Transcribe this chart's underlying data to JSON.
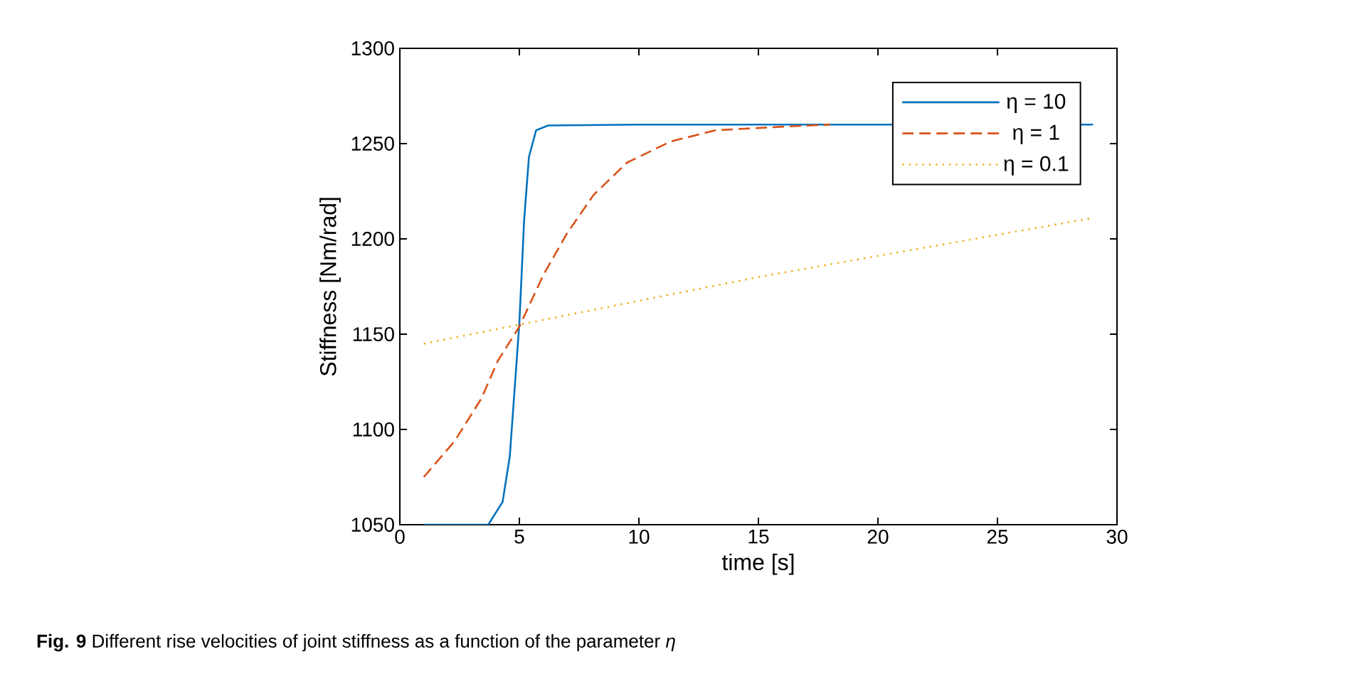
{
  "chart_data": {
    "type": "line",
    "xlabel": "time [s]",
    "ylabel": "Stiffness [Nm/rad]",
    "annotations": [
      "**Fig. 9**  Different rise velocities of joint stiffness as a function of the parameter *η*"
    ],
    "xlim": [
      0,
      30
    ],
    "xticks": [
      0,
      5,
      10,
      15,
      20,
      25,
      30
    ],
    "ylim": [
      1050,
      1300
    ],
    "yticks": [
      1050,
      1100,
      1150,
      1200,
      1250,
      1300
    ],
    "legend": "top right",
    "series": [
      {
        "name": "η = 10",
        "color": "#0072bd",
        "line_style": "solid",
        "x": [
          1,
          3.7,
          4.3,
          4.6,
          5,
          5.2,
          5.4,
          5.7,
          6.2,
          10,
          20,
          29
        ],
        "values": [
          1050,
          1050,
          1062,
          1086,
          1156,
          1210,
          1243,
          1257,
          1259.5,
          1260,
          1260,
          1260
        ]
      },
      {
        "name": "η = 1",
        "color": "#d95319",
        "line_style": "dashed",
        "x": [
          1,
          2.3,
          3.4,
          4.1,
          5,
          6,
          7,
          8.1,
          9.5,
          11.3,
          13.2,
          16.2,
          18
        ],
        "values": [
          1075,
          1094,
          1116,
          1136,
          1154,
          1181,
          1203,
          1223,
          1240,
          1251,
          1257,
          1259,
          1260
        ]
      },
      {
        "name": "η = 0.1",
        "color": "#edb120",
        "line_style": "dotted",
        "x": [
          1,
          15,
          29
        ],
        "values": [
          1145,
          1180,
          1211
        ]
      }
    ]
  }
}
